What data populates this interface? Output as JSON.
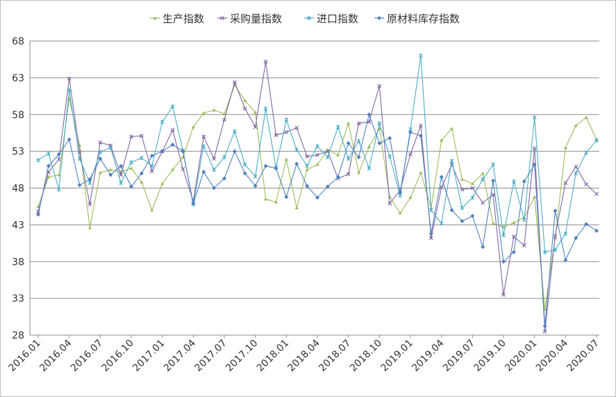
{
  "chart_data": {
    "type": "line",
    "title": "",
    "xlabel": "",
    "ylabel": "",
    "ylim": [
      28,
      68
    ],
    "yticks": [
      28,
      33,
      38,
      43,
      48,
      53,
      58,
      63,
      68
    ],
    "grid": "horizontal",
    "legend_position": "top",
    "x": [
      "2016.01",
      "2016.02",
      "2016.03",
      "2016.04",
      "2016.05",
      "2016.06",
      "2016.07",
      "2016.08",
      "2016.09",
      "2016.10",
      "2016.11",
      "2016.12",
      "2017.01",
      "2017.02",
      "2017.03",
      "2017.04",
      "2017.05",
      "2017.06",
      "2017.07",
      "2017.08",
      "2017.09",
      "2017.10",
      "2017.11",
      "2017.12",
      "2018.01",
      "2018.02",
      "2018.03",
      "2018.04",
      "2018.05",
      "2018.06",
      "2018.07",
      "2018.08",
      "2018.09",
      "2018.10",
      "2018.11",
      "2018.12",
      "2019.01",
      "2019.02",
      "2019.03",
      "2019.04",
      "2019.05",
      "2019.06",
      "2019.07",
      "2019.08",
      "2019.09",
      "2019.10",
      "2019.11",
      "2019.12",
      "2020.01",
      "2020.02",
      "2020.03",
      "2020.04",
      "2020.05",
      "2020.06",
      "2020.07"
    ],
    "xtick_labels": [
      "2016.01",
      "2016.04",
      "2016.07",
      "2016.10",
      "2017.01",
      "2017.04",
      "2017.07",
      "2017.10",
      "2018.01",
      "2018.04",
      "2018.07",
      "2018.10",
      "2019.01",
      "2019.04",
      "2019.07",
      "2019.10",
      "2020.01",
      "2020.04",
      "2020.07"
    ],
    "series": [
      {
        "name": "生产指数",
        "color": "#9bbb59",
        "marker": "triangle",
        "values": [
          45.5,
          49.5,
          49.8,
          60.2,
          53.8,
          42.6,
          50.1,
          50.5,
          50.2,
          50.7,
          48.8,
          45.0,
          48.6,
          50.5,
          52.2,
          56.3,
          58.2,
          58.6,
          58.1,
          62.0,
          59.9,
          58.3,
          46.5,
          46.1,
          51.9,
          45.3,
          50.5,
          51.2,
          53.2,
          52.5,
          56.8,
          50.1,
          53.6,
          56.1,
          46.8,
          44.6,
          46.7,
          50.1,
          45.3,
          54.5,
          56.1,
          49.2,
          48.6,
          50.0,
          43.2,
          42.7,
          43.3,
          44.0,
          46.8,
          31.5,
          41.2,
          53.5,
          56.5,
          57.6,
          54.6
        ]
      },
      {
        "name": "采购量指数",
        "color": "#8064a2",
        "marker": "cross",
        "values": [
          44.8,
          50.2,
          51.9,
          62.9,
          52.9,
          45.8,
          54.2,
          53.8,
          49.8,
          55.0,
          55.1,
          50.3,
          53.0,
          55.9,
          50.6,
          46.2,
          55.0,
          52.0,
          57.3,
          62.4,
          58.8,
          56.3,
          65.2,
          55.2,
          55.6,
          56.2,
          52.3,
          52.5,
          53.0,
          49.3,
          49.9,
          56.8,
          57.0,
          61.9,
          45.9,
          47.7,
          52.6,
          56.5,
          41.2,
          48.1,
          51.2,
          47.8,
          48.0,
          46.0,
          47.1,
          33.5,
          41.4,
          40.2,
          53.4,
          28.5,
          41.5,
          48.7,
          50.9,
          48.5,
          47.2
        ]
      },
      {
        "name": "进口指数",
        "color": "#4bacc6",
        "marker": "star",
        "values": [
          51.8,
          52.7,
          47.8,
          61.3,
          52.0,
          48.7,
          52.9,
          53.5,
          48.7,
          51.5,
          52.1,
          51.0,
          57.0,
          59.1,
          53.1,
          45.8,
          53.7,
          50.5,
          52.2,
          55.7,
          51.2,
          49.6,
          58.8,
          50.8,
          57.3,
          53.2,
          51.0,
          53.7,
          52.2,
          56.3,
          52.0,
          54.4,
          50.7,
          56.8,
          52.3,
          47.0,
          56.0,
          66.0,
          45.0,
          43.2,
          51.7,
          45.3,
          46.7,
          49.2,
          51.2,
          41.6,
          48.9,
          43.7,
          57.6,
          39.3,
          39.6,
          41.8,
          50.0,
          52.8,
          54.5
        ]
      },
      {
        "name": "原材料库存指数",
        "color": "#4f81bd",
        "marker": "diamond",
        "values": [
          44.4,
          51.0,
          52.6,
          54.6,
          48.4,
          49.2,
          52.0,
          49.8,
          51.0,
          48.2,
          50.0,
          52.4,
          53.0,
          53.9,
          53.0,
          45.9,
          50.2,
          48.0,
          49.3,
          53.0,
          50.0,
          48.3,
          51.0,
          50.7,
          46.8,
          51.3,
          48.3,
          46.7,
          48.2,
          49.5,
          54.1,
          52.2,
          58.0,
          54.1,
          54.8,
          47.4,
          55.6,
          55.1,
          41.8,
          49.5,
          45.0,
          43.5,
          44.2,
          40.0,
          49.0,
          38.0,
          39.3,
          48.9,
          51.2,
          29.2,
          44.9,
          38.2,
          41.2,
          43.1,
          42.2
        ]
      }
    ]
  }
}
